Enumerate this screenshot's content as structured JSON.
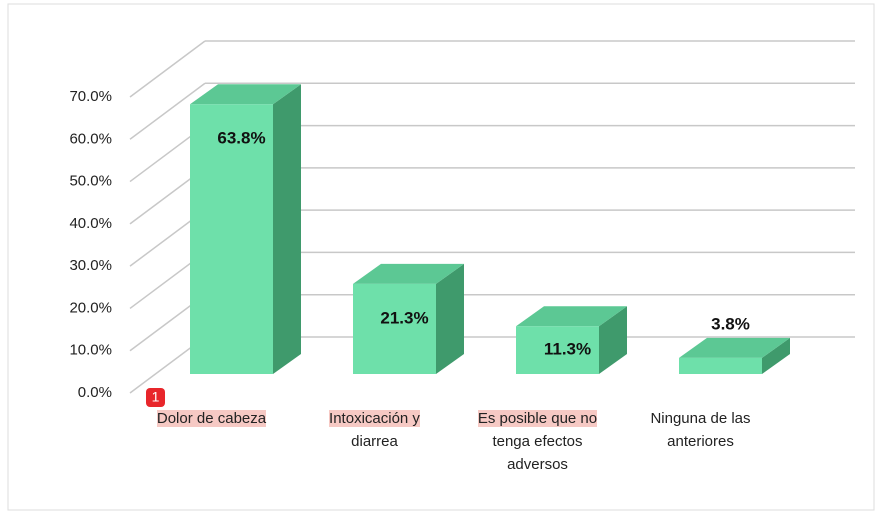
{
  "chart_data": {
    "type": "bar3d",
    "categories": [
      "Dolor de cabeza",
      "Intoxicación y\ndiarrea",
      "Es posible que no\ntenga efectos\nadversos",
      "Ninguna de las\nanteriores"
    ],
    "values": [
      63.8,
      21.3,
      11.3,
      3.8
    ],
    "value_labels": [
      "63.8%",
      "21.3%",
      "11.3%",
      "3.8%"
    ],
    "color": "#6ee0aa",
    "ylim": [
      0,
      70
    ],
    "yticks": [
      {
        "value": 0,
        "label": "0.0%"
      },
      {
        "value": 10,
        "label": "10.0%"
      },
      {
        "value": 20,
        "label": "20.0%"
      },
      {
        "value": 30,
        "label": "30.0%"
      },
      {
        "value": 40,
        "label": "40.0%"
      },
      {
        "value": 50,
        "label": "50.0%"
      },
      {
        "value": 60,
        "label": "60.0%"
      },
      {
        "value": 70,
        "label": "70.0%"
      }
    ],
    "grid": true,
    "annotation": "1"
  }
}
